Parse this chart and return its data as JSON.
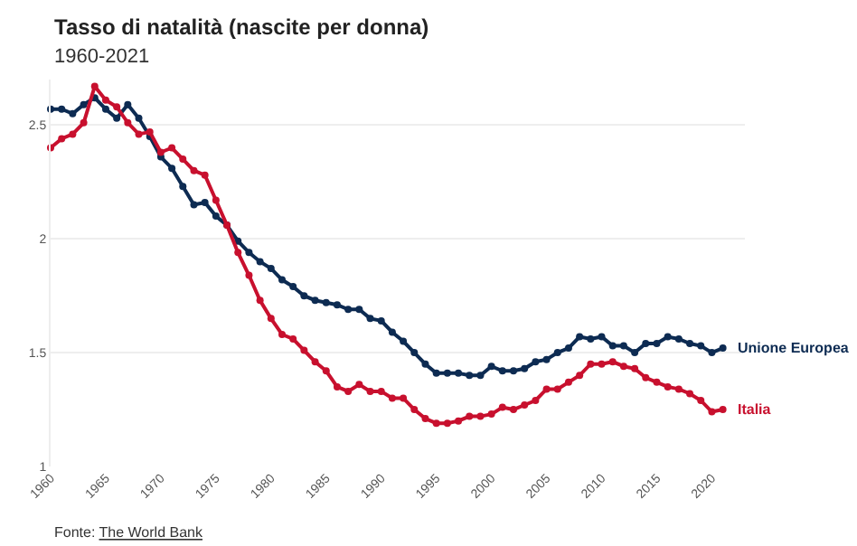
{
  "chart_data": {
    "type": "line",
    "title": "Tasso di natalità (nascite per donna)",
    "subtitle": "1960-2021",
    "annotations": [
      "Fonte: The World Bank"
    ],
    "x": [
      1960,
      1961,
      1962,
      1963,
      1964,
      1965,
      1966,
      1967,
      1968,
      1969,
      1970,
      1971,
      1972,
      1973,
      1974,
      1975,
      1976,
      1977,
      1978,
      1979,
      1980,
      1981,
      1982,
      1983,
      1984,
      1985,
      1986,
      1987,
      1988,
      1989,
      1990,
      1991,
      1992,
      1993,
      1994,
      1995,
      1996,
      1997,
      1998,
      1999,
      2000,
      2001,
      2002,
      2003,
      2004,
      2005,
      2006,
      2007,
      2008,
      2009,
      2010,
      2011,
      2012,
      2013,
      2014,
      2015,
      2016,
      2017,
      2018,
      2019,
      2020,
      2021
    ],
    "series": [
      {
        "name": "Unione Europea",
        "color": "#0d2b52",
        "values": [
          2.57,
          2.57,
          2.55,
          2.59,
          2.62,
          2.57,
          2.53,
          2.59,
          2.53,
          2.45,
          2.36,
          2.31,
          2.23,
          2.15,
          2.16,
          2.1,
          2.06,
          1.99,
          1.94,
          1.9,
          1.87,
          1.82,
          1.79,
          1.75,
          1.73,
          1.72,
          1.71,
          1.69,
          1.69,
          1.65,
          1.64,
          1.59,
          1.55,
          1.5,
          1.45,
          1.41,
          1.41,
          1.41,
          1.4,
          1.4,
          1.44,
          1.42,
          1.42,
          1.43,
          1.46,
          1.47,
          1.5,
          1.52,
          1.57,
          1.56,
          1.57,
          1.53,
          1.53,
          1.5,
          1.54,
          1.54,
          1.57,
          1.56,
          1.54,
          1.53,
          1.5,
          1.52
        ]
      },
      {
        "name": "Italia",
        "color": "#c8102e",
        "values": [
          2.4,
          2.44,
          2.46,
          2.51,
          2.67,
          2.61,
          2.58,
          2.51,
          2.46,
          2.47,
          2.38,
          2.4,
          2.35,
          2.3,
          2.28,
          2.17,
          2.06,
          1.94,
          1.84,
          1.73,
          1.65,
          1.58,
          1.56,
          1.51,
          1.46,
          1.42,
          1.35,
          1.33,
          1.36,
          1.33,
          1.33,
          1.3,
          1.3,
          1.25,
          1.21,
          1.19,
          1.19,
          1.2,
          1.22,
          1.22,
          1.23,
          1.26,
          1.25,
          1.27,
          1.29,
          1.34,
          1.34,
          1.37,
          1.4,
          1.45,
          1.45,
          1.46,
          1.44,
          1.43,
          1.39,
          1.37,
          1.35,
          1.34,
          1.32,
          1.29,
          1.24,
          1.25
        ]
      }
    ],
    "xlim": [
      1960,
      2023
    ],
    "xticks": [
      1960,
      1965,
      1970,
      1975,
      1980,
      1985,
      1990,
      1995,
      2000,
      2005,
      2010,
      2015,
      2020
    ],
    "ylim": [
      1,
      2.7
    ],
    "yticks": [
      1,
      1.5,
      2,
      2.5
    ],
    "grid": "y",
    "legend": false,
    "marker": "circle",
    "line_style": "solid"
  }
}
